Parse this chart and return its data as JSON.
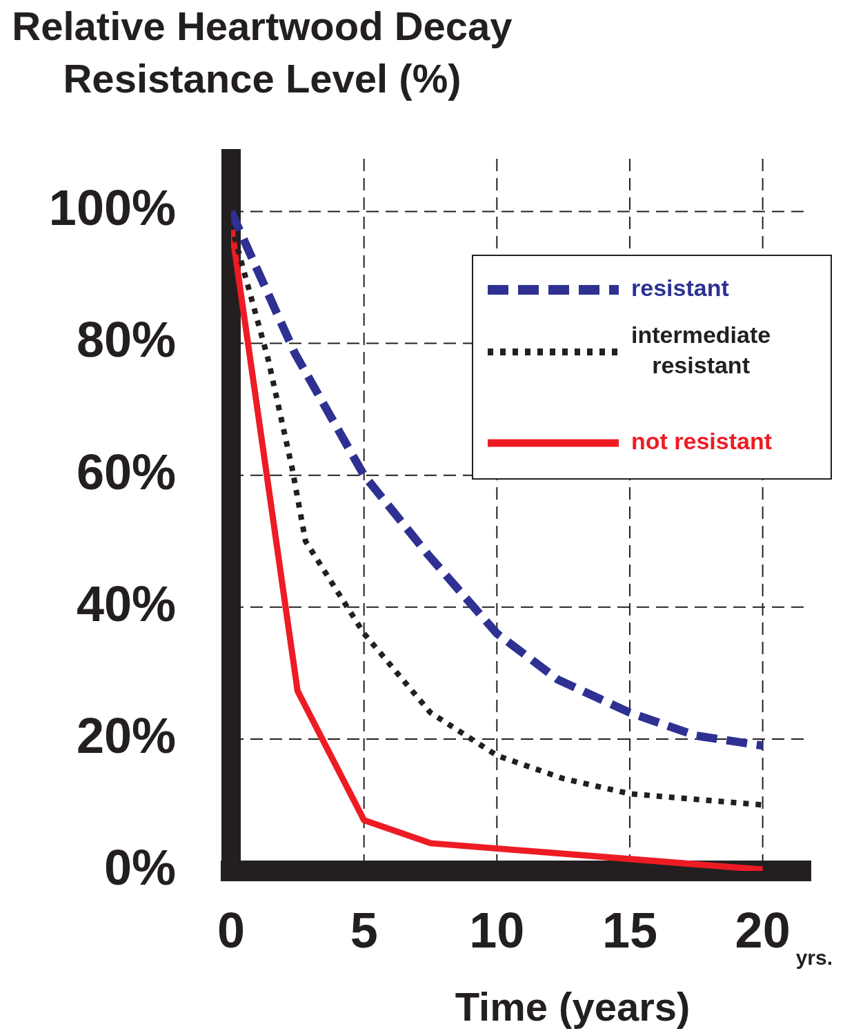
{
  "chart_data": {
    "type": "line",
    "ylabel": "Relative Heartwood Decay Resistance Level (%)",
    "xlabel": "Time (years)",
    "annotations": [
      "yrs."
    ],
    "xlim": [
      0,
      21.8
    ],
    "ylim": [
      0,
      108
    ],
    "xticks": [
      0,
      5,
      10,
      15,
      20
    ],
    "yticks": [
      {
        "value": 0,
        "label": "0%"
      },
      {
        "value": 20,
        "label": "20%"
      },
      {
        "value": 40,
        "label": "40%"
      },
      {
        "value": 60,
        "label": "60%"
      },
      {
        "value": 80,
        "label": "80%"
      },
      {
        "value": 100,
        "label": "100%"
      }
    ],
    "grid": true,
    "legend": "top right",
    "marker": "none",
    "series": [
      {
        "name": "resistant",
        "color": "#2e3192",
        "line_style": "dashed",
        "x": [
          0,
          2.4,
          5,
          7.4,
          10,
          12.3,
          15,
          17.5,
          20
        ],
        "values": [
          100,
          78.5,
          60,
          48,
          36,
          29,
          24,
          20.5,
          19
        ]
      },
      {
        "name": "intermediate resistant",
        "color": "#231f20",
        "line_style": "dotted",
        "x": [
          0,
          1.4,
          2.3,
          2.8,
          5,
          7.5,
          10,
          12.5,
          15,
          20
        ],
        "values": [
          98,
          77.5,
          61,
          50,
          36,
          24,
          17.5,
          14,
          11.7,
          10
        ]
      },
      {
        "name": "not resistant",
        "color": "#ed1c24",
        "line_style": "solid",
        "x": [
          0,
          2.5,
          5,
          7.5,
          20
        ],
        "values": [
          98,
          27.3,
          7.7,
          4.2,
          0.2
        ]
      }
    ]
  }
}
